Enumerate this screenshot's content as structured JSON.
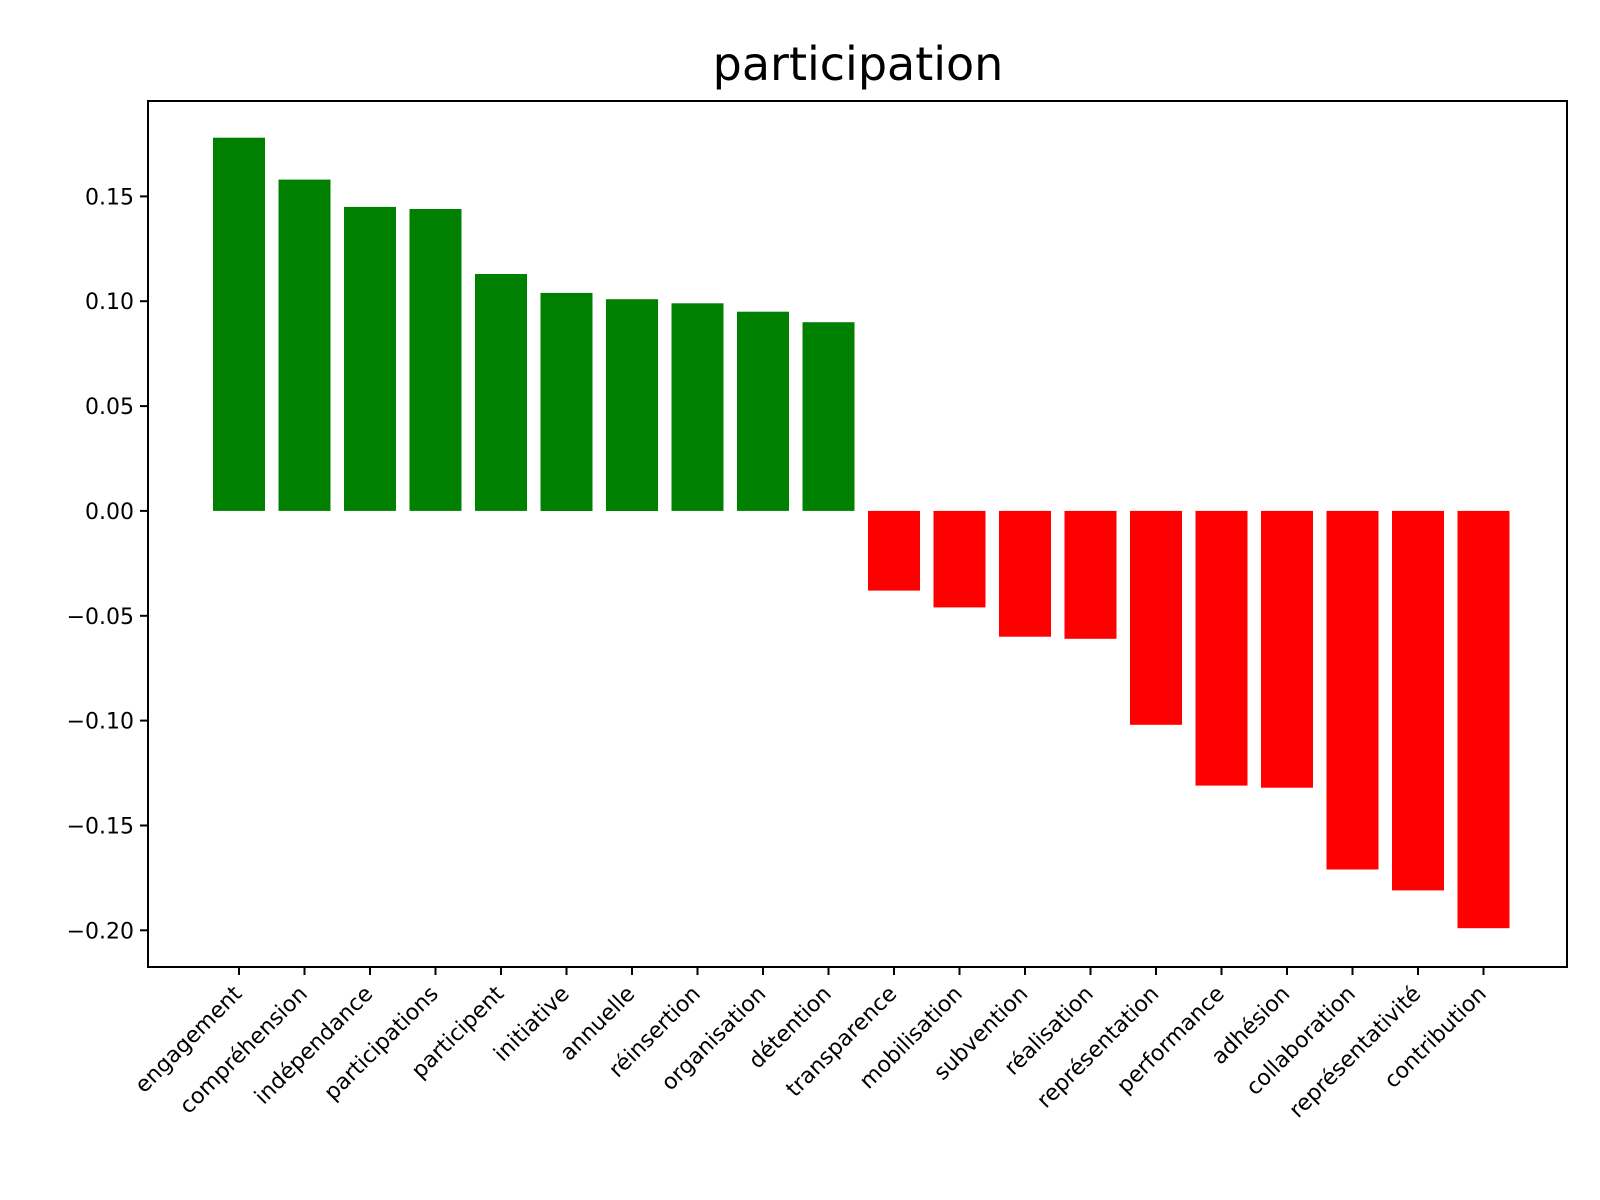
{
  "chart_data": {
    "type": "bar",
    "title": "participation",
    "xlabel": "",
    "ylabel": "",
    "categories": [
      "engagement",
      "compréhension",
      "indépendance",
      "participations",
      "participent",
      "initiative",
      "annuelle",
      "réinsertion",
      "organisation",
      "détention",
      "transparence",
      "mobilisation",
      "subvention",
      "réalisation",
      "représentation",
      "performance",
      "adhésion",
      "collaboration",
      "représentativité",
      "contribution"
    ],
    "values": [
      0.178,
      0.158,
      0.145,
      0.144,
      0.113,
      0.104,
      0.101,
      0.099,
      0.095,
      0.09,
      -0.038,
      -0.046,
      -0.06,
      -0.061,
      -0.102,
      -0.131,
      -0.132,
      -0.171,
      -0.181,
      -0.199
    ],
    "ylim": [
      -0.2175,
      0.1955
    ],
    "yticks": [
      -0.2,
      -0.15,
      -0.1,
      -0.05,
      0.0,
      0.05,
      0.1,
      0.15
    ],
    "ytick_labels": [
      "−0.20",
      "−0.15",
      "−0.10",
      "−0.05",
      "0.00",
      "0.05",
      "0.10",
      "0.15"
    ],
    "grid": false,
    "colors": {
      "positive": "#008000",
      "negative": "#ff0000",
      "axes": "#000000",
      "background": "#ffffff"
    }
  }
}
